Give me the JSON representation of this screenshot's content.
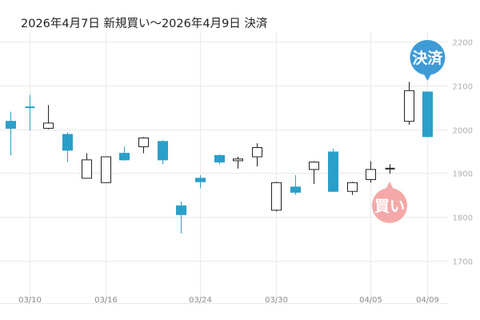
{
  "title": "2026年4月7日 新規買い〜2026年4月9日 決済",
  "colors": {
    "up_fill": "#ffffff",
    "up_stroke": "#222222",
    "down_fill": "#2a9fc9",
    "wick_down": "#2a9fc9",
    "grid": "#e9e9e9",
    "buy_badge": "#f4a9a8",
    "sell_badge": "#3e9bd6"
  },
  "chart_data": {
    "type": "candlestick",
    "ylim": [
      1640,
      2220
    ],
    "y_ticks": [
      "1700",
      "1800",
      "1900",
      "2000",
      "2100",
      "2200"
    ],
    "x_tick_labels": [
      {
        "label": "03/10",
        "index": 1
      },
      {
        "label": "03/16",
        "index": 5
      },
      {
        "label": "03/24",
        "index": 10
      },
      {
        "label": "03/30",
        "index": 14
      },
      {
        "label": "04/05",
        "index": 19
      },
      {
        "label": "04/09",
        "index": 22
      }
    ],
    "candles": [
      {
        "open": 2018,
        "high": 2040,
        "low": 1940,
        "close": 2002
      },
      {
        "open": 2050,
        "high": 2078,
        "low": 1997,
        "close": 2048
      },
      {
        "open": 2002,
        "high": 2055,
        "low": 2000,
        "close": 2014
      },
      {
        "open": 1988,
        "high": 1993,
        "low": 1925,
        "close": 1952
      },
      {
        "open": 1888,
        "high": 1945,
        "low": 1888,
        "close": 1930
      },
      {
        "open": 1878,
        "high": 1937,
        "low": 1878,
        "close": 1937
      },
      {
        "open": 1945,
        "high": 1960,
        "low": 1928,
        "close": 1930
      },
      {
        "open": 1960,
        "high": 1982,
        "low": 1945,
        "close": 1980
      },
      {
        "open": 1972,
        "high": 1975,
        "low": 1920,
        "close": 1930
      },
      {
        "open": 1825,
        "high": 1835,
        "low": 1762,
        "close": 1805
      },
      {
        "open": 1888,
        "high": 1895,
        "low": 1865,
        "close": 1880
      },
      {
        "open": 1940,
        "high": 1942,
        "low": 1920,
        "close": 1925
      },
      {
        "open": 1928,
        "high": 1937,
        "low": 1910,
        "close": 1932
      },
      {
        "open": 1937,
        "high": 1968,
        "low": 1915,
        "close": 1958
      },
      {
        "open": 1815,
        "high": 1880,
        "low": 1812,
        "close": 1878
      },
      {
        "open": 1868,
        "high": 1895,
        "low": 1850,
        "close": 1856
      },
      {
        "open": 1908,
        "high": 1927,
        "low": 1875,
        "close": 1925
      },
      {
        "open": 1948,
        "high": 1955,
        "low": 1857,
        "close": 1858
      },
      {
        "open": 1858,
        "high": 1880,
        "low": 1850,
        "close": 1878
      },
      {
        "open": 1885,
        "high": 1927,
        "low": 1878,
        "close": 1908
      },
      {
        "open": 1910,
        "high": 1920,
        "low": 1898,
        "close": 1910
      },
      {
        "open": 2018,
        "high": 2108,
        "low": 2010,
        "close": 2088
      },
      {
        "open": 2085,
        "high": 2085,
        "low": 1982,
        "close": 1983
      }
    ],
    "markers": [
      {
        "label": "買い",
        "index": 20,
        "price": 1910,
        "color": "#f4a9a8"
      },
      {
        "label": "決済",
        "index": 22,
        "price": 2085,
        "color": "#3e9bd6"
      }
    ]
  }
}
